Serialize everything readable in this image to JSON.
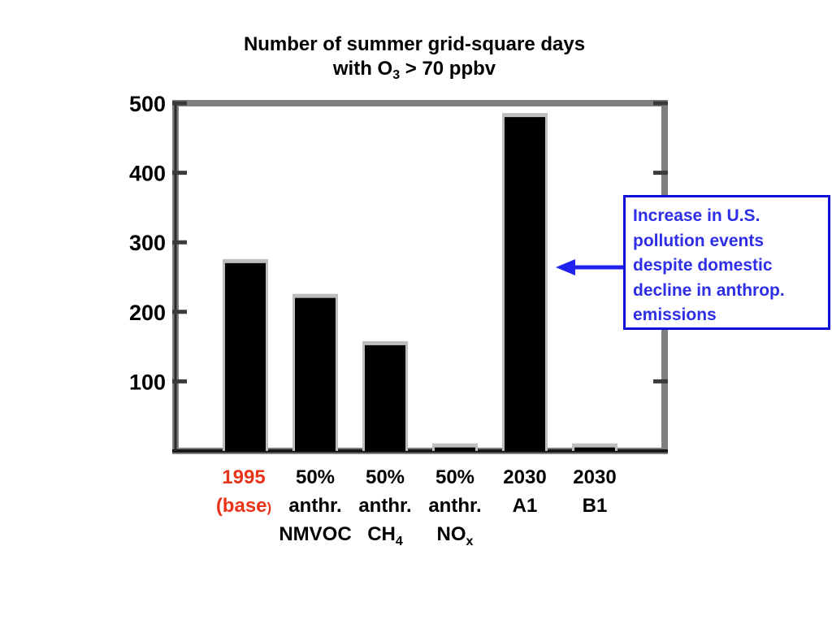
{
  "title": {
    "line1": "Number of summer grid-square days",
    "line2_prefix": "with O",
    "line2_sub": "3",
    "line2_suffix": " > 70 ppbv"
  },
  "chart_data": {
    "type": "bar",
    "title": "Number of summer grid-square days with O3 > 70 ppbv",
    "ylabel": "",
    "xlabel": "",
    "ylim": [
      0,
      500
    ],
    "yticks": [
      100,
      200,
      300,
      400,
      500
    ],
    "categories": [
      "1995 (base)",
      "50% anthr. NMVOC",
      "50% anthr. CH4",
      "50% anthr. NOx",
      "2030 A1",
      "2030 B1"
    ],
    "values": [
      270,
      220,
      152,
      5,
      480,
      5
    ],
    "bar_color": "#000000",
    "frame_color": "#7f7f7f",
    "grid": false
  },
  "xlabels": [
    {
      "line1": "1995",
      "line2": "(base",
      "line2_tail": ")",
      "line3": "",
      "line3_sub": "",
      "color": "#e8351a"
    },
    {
      "line1": "50%",
      "line2": "anthr.",
      "line2_tail": "",
      "line3": "NMVOC",
      "line3_sub": "",
      "color": "#000000"
    },
    {
      "line1": "50%",
      "line2": "anthr.",
      "line2_tail": "",
      "line3": "CH",
      "line3_sub": "4",
      "color": "#000000"
    },
    {
      "line1": "50%",
      "line2": "anthr.",
      "line2_tail": "",
      "line3": "NO",
      "line3_sub": "x",
      "color": "#000000"
    },
    {
      "line1": "2030",
      "line2": "A1",
      "line2_tail": "",
      "line3": "",
      "line3_sub": "",
      "color": "#000000"
    },
    {
      "line1": "2030",
      "line2": "B1",
      "line2_tail": "",
      "line3": "",
      "line3_sub": "",
      "color": "#000000"
    }
  ],
  "annotation": {
    "lines": [
      "Increase in U.S.",
      "pollution events",
      "despite domestic",
      "decline in anthrop.",
      "emissions"
    ],
    "text_color": "#2e2ee6",
    "border_color": "#1010d8",
    "arrow_color": "#2222ee",
    "points_to": "2030 A1"
  }
}
